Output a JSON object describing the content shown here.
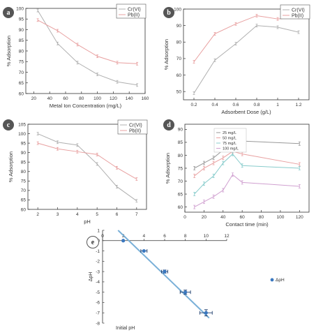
{
  "chart_data": [
    {
      "panel": "a",
      "type": "line",
      "xlabel": "Metal Ion Concentration (mg/L)",
      "ylabel": "% Adsorption",
      "xlim": [
        10,
        160
      ],
      "ylim": [
        60,
        100
      ],
      "xticks": [
        20,
        40,
        60,
        80,
        100,
        120,
        140,
        160
      ],
      "yticks": [
        60,
        65,
        70,
        75,
        80,
        85,
        90,
        95,
        100
      ],
      "legend_position": "top-right",
      "series": [
        {
          "name": "Cr(VI)",
          "x": [
            25,
            50,
            75,
            100,
            125,
            150
          ],
          "y": [
            99,
            83.5,
            74.5,
            69,
            65.5,
            64
          ],
          "color": "#b0b0b0"
        },
        {
          "name": "Pb(II)",
          "x": [
            25,
            50,
            75,
            100,
            125,
            150
          ],
          "y": [
            94.5,
            89.5,
            83,
            77.5,
            74.5,
            74
          ],
          "color": "#e8a0a0"
        }
      ]
    },
    {
      "panel": "b",
      "type": "line",
      "xlabel": "Adsorbent Dose (g/L)",
      "ylabel": "% Adsorption",
      "xlim": [
        0.1,
        1.3
      ],
      "ylim": [
        45,
        100
      ],
      "xticks": [
        0.2,
        0.4,
        0.6,
        0.8,
        1.0,
        1.2
      ],
      "yticks": [
        50,
        60,
        70,
        80,
        90,
        100
      ],
      "legend_position": "top-right",
      "series": [
        {
          "name": "Cr(VI)",
          "x": [
            0.2,
            0.4,
            0.6,
            0.8,
            1.0,
            1.2
          ],
          "y": [
            49,
            69,
            79,
            90,
            89,
            86
          ],
          "color": "#b0b0b0"
        },
        {
          "name": "Pb(II)",
          "x": [
            0.2,
            0.4,
            0.6,
            0.8,
            1.0,
            1.2
          ],
          "y": [
            68,
            85,
            91,
            96,
            94,
            95
          ],
          "color": "#e8a0a0"
        }
      ]
    },
    {
      "panel": "c",
      "type": "line",
      "xlabel": "pH",
      "ylabel": "% Adsorption",
      "xlim": [
        1.5,
        7.5
      ],
      "ylim": [
        60,
        105
      ],
      "xticks": [
        2,
        3,
        4,
        5,
        6,
        7
      ],
      "yticks": [
        60,
        65,
        70,
        75,
        80,
        85,
        90,
        95,
        100,
        105
      ],
      "legend_position": "top-right",
      "series": [
        {
          "name": "Cr(VI)",
          "x": [
            2,
            3,
            4,
            5,
            6,
            7
          ],
          "y": [
            100,
            95.5,
            94,
            84,
            72,
            64.5
          ],
          "color": "#b0b0b0"
        },
        {
          "name": "Pb(II)",
          "x": [
            2,
            3,
            4,
            5,
            6,
            7
          ],
          "y": [
            95,
            92,
            90.5,
            89,
            82,
            76
          ],
          "color": "#e8a0a0"
        }
      ]
    },
    {
      "panel": "d",
      "type": "line",
      "xlabel": "Contact time (min)",
      "ylabel": "% Adsorption",
      "xlim": [
        0,
        130
      ],
      "ylim": [
        58,
        92
      ],
      "xticks": [
        0,
        20,
        40,
        60,
        80,
        100,
        120
      ],
      "yticks": [
        60,
        65,
        70,
        75,
        80,
        85,
        90
      ],
      "legend_position": "top-right",
      "series": [
        {
          "name": "25 mg/L",
          "x": [
            10,
            20,
            30,
            40,
            50,
            60,
            120
          ],
          "y": [
            75,
            77,
            79,
            82,
            86.5,
            85.5,
            84.5
          ],
          "color": "#999999"
        },
        {
          "name": "50 mg/L",
          "x": [
            10,
            20,
            30,
            40,
            50,
            60,
            120
          ],
          "y": [
            72,
            75,
            77,
            79,
            81.5,
            80.5,
            76.5
          ],
          "color": "#e8a0a0"
        },
        {
          "name": "75 mg/L",
          "x": [
            10,
            20,
            30,
            40,
            50,
            60,
            120
          ],
          "y": [
            65,
            69,
            72,
            77,
            80.5,
            76,
            75
          ],
          "color": "#88cccc"
        },
        {
          "name": "100 mg/L",
          "x": [
            10,
            20,
            30,
            40,
            50,
            60,
            120
          ],
          "y": [
            60,
            62,
            64,
            66.5,
            72.5,
            69.5,
            68
          ],
          "color": "#d0a0d0"
        }
      ]
    },
    {
      "panel": "e",
      "type": "scatter",
      "xlabel": "Initial pH",
      "ylabel": "ΔpH",
      "xlim": [
        0,
        12
      ],
      "ylim": [
        -8,
        1
      ],
      "xticks": [
        0,
        2,
        4,
        6,
        8,
        10,
        12
      ],
      "yticks": [
        -8,
        -7,
        -6,
        -5,
        -4,
        -3,
        -2,
        -1,
        0,
        1
      ],
      "legend_position": "right",
      "series": [
        {
          "name": "ΔpH",
          "x": [
            2,
            4,
            6,
            8,
            10
          ],
          "y": [
            0,
            -1,
            -3,
            -5,
            -7
          ],
          "xerr": [
            0,
            0.3,
            0.3,
            0.5,
            0.6
          ],
          "yerr": [
            0,
            0,
            0.15,
            0.2,
            0.3
          ],
          "color": "#3a78c0"
        }
      ],
      "trendline": {
        "x": [
          1.5,
          10.3
        ],
        "y": [
          1.0,
          -7.5
        ],
        "color": "#7ab0d8"
      }
    }
  ],
  "labels": {
    "a": "a",
    "b": "b",
    "c": "c",
    "d": "d",
    "e": "e"
  }
}
